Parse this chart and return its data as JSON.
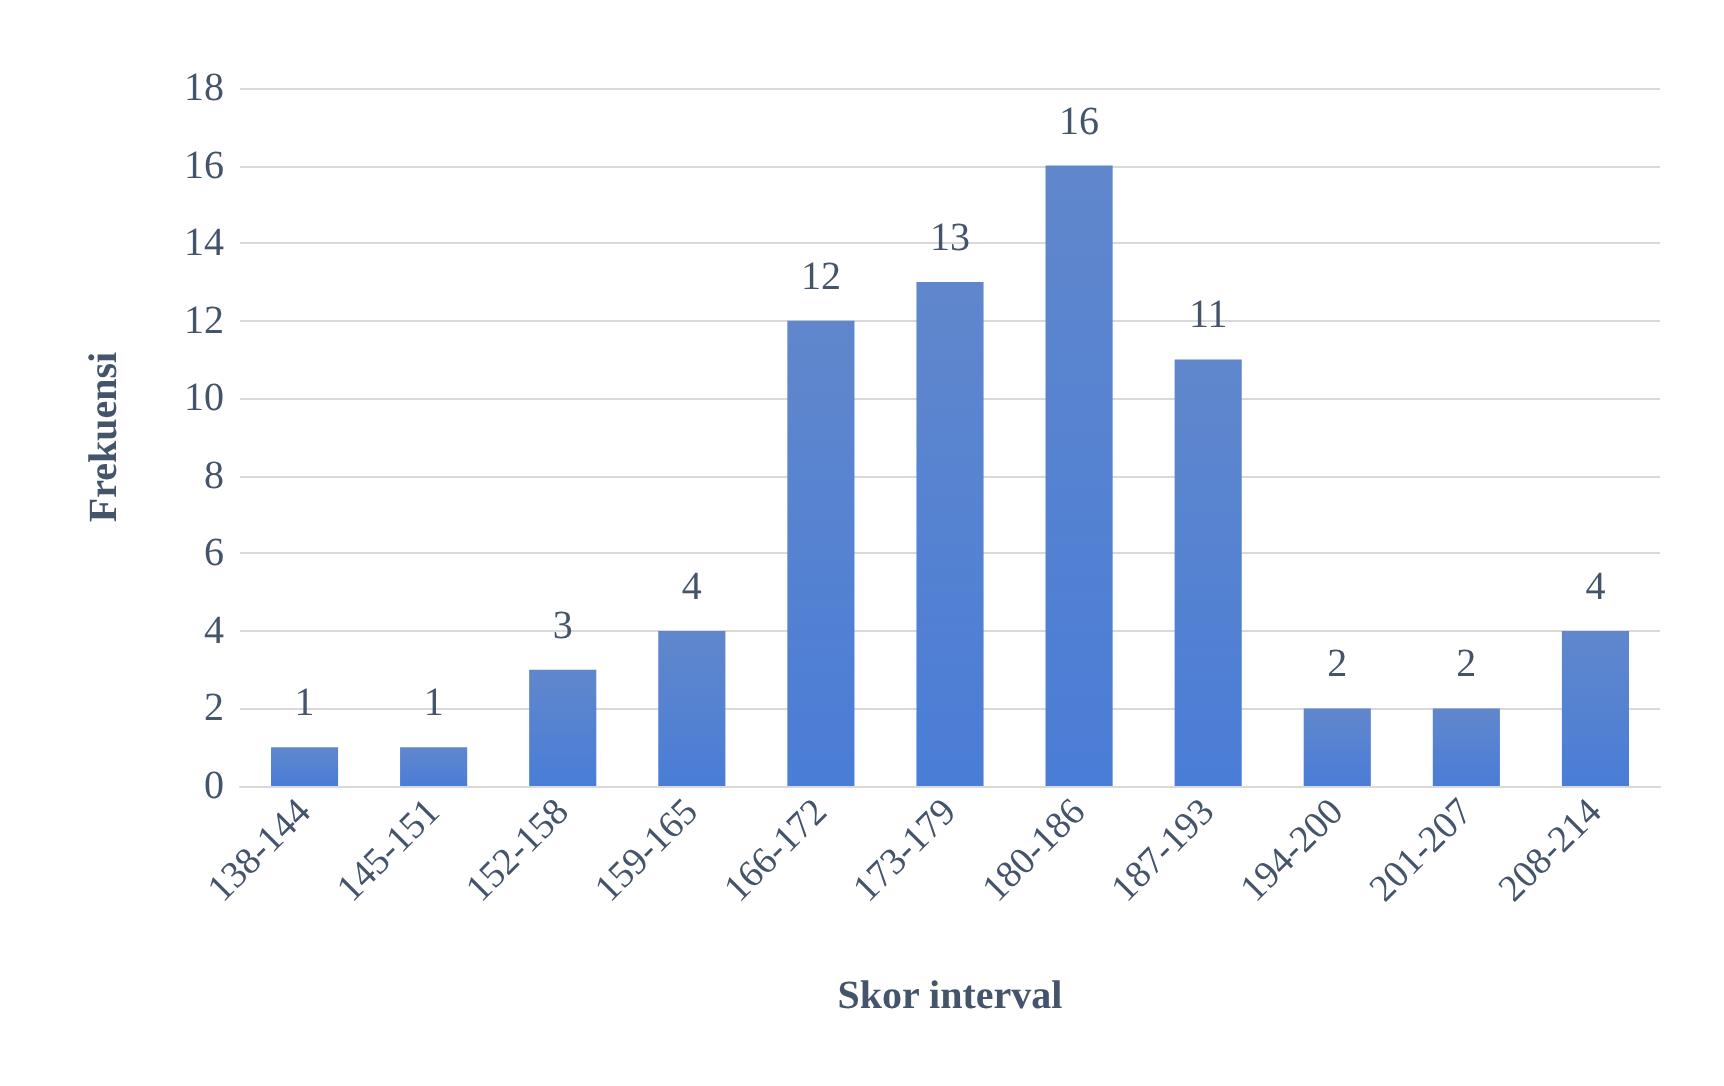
{
  "chart_data": {
    "type": "bar",
    "xlabel": "Skor interval",
    "ylabel": "Frekuensi",
    "categories": [
      "138-144",
      "145-151",
      "152-158",
      "159-165",
      "166-172",
      "173-179",
      "180-186",
      "187-193",
      "194-200",
      "201-207",
      "208-214"
    ],
    "values": [
      1,
      1,
      3,
      4,
      12,
      13,
      16,
      11,
      2,
      2,
      4
    ],
    "color": "#4472c4",
    "ylim": [
      0,
      18
    ],
    "yticks": [
      0,
      2,
      4,
      6,
      8,
      10,
      12,
      14,
      16,
      18
    ],
    "grid": "y",
    "data_labels": true
  }
}
